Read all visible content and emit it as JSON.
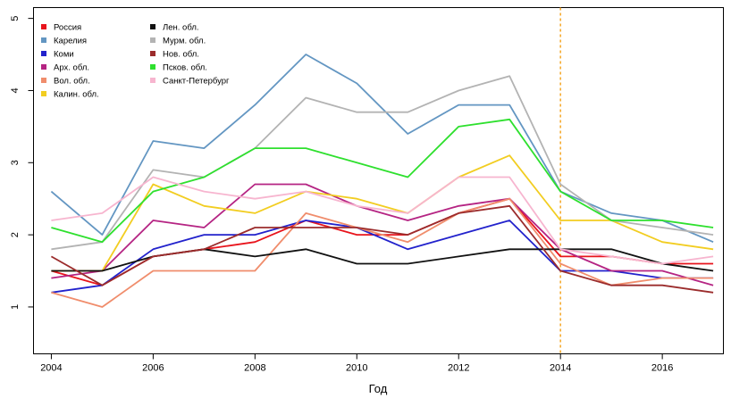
{
  "chart_data": {
    "type": "line",
    "title": "",
    "xlabel": "Год",
    "ylabel": "",
    "xlim": [
      2003.65,
      2017.2
    ],
    "ylim": [
      0.35,
      5.15
    ],
    "x_ticks": [
      2004,
      2006,
      2008,
      2010,
      2012,
      2014,
      2016
    ],
    "y_ticks": [
      1,
      2,
      3,
      4,
      5
    ],
    "x": [
      2004,
      2005,
      2006,
      2007,
      2008,
      2009,
      2010,
      2011,
      2012,
      2013,
      2014,
      2015,
      2016,
      2017
    ],
    "vline": {
      "x": 2014,
      "color": "#f5a623",
      "style": "dashed"
    },
    "legend_position": "top-left",
    "grid": false,
    "series": [
      {
        "name": "Россия",
        "color": "#e8141c",
        "values": [
          1.5,
          1.3,
          1.7,
          1.8,
          1.9,
          2.2,
          2.0,
          2.0,
          2.3,
          2.5,
          1.7,
          1.7,
          1.6,
          1.6
        ]
      },
      {
        "name": "Карелия",
        "color": "#6396c2",
        "values": [
          2.6,
          2.0,
          3.3,
          3.2,
          3.8,
          4.5,
          4.1,
          3.4,
          3.8,
          3.8,
          2.6,
          2.3,
          2.2,
          1.9
        ]
      },
      {
        "name": "Коми",
        "color": "#2222cc",
        "values": [
          1.2,
          1.3,
          1.8,
          2.0,
          2.0,
          2.2,
          2.1,
          1.8,
          2.0,
          2.2,
          1.5,
          1.5,
          1.4,
          1.4
        ]
      },
      {
        "name": "Арх. обл.",
        "color": "#b52483",
        "values": [
          1.4,
          1.5,
          2.2,
          2.1,
          2.7,
          2.7,
          2.4,
          2.2,
          2.4,
          2.5,
          1.8,
          1.5,
          1.5,
          1.3
        ]
      },
      {
        "name": "Вол. обл.",
        "color": "#f08d6c",
        "values": [
          1.2,
          1.0,
          1.5,
          1.5,
          1.5,
          2.3,
          2.1,
          1.9,
          2.3,
          2.5,
          1.6,
          1.3,
          1.4,
          1.4
        ]
      },
      {
        "name": "Калин. обл.",
        "color": "#f2cd21",
        "values": [
          1.5,
          1.5,
          2.7,
          2.4,
          2.3,
          2.6,
          2.5,
          2.3,
          2.8,
          3.1,
          2.2,
          2.2,
          1.9,
          1.8
        ]
      },
      {
        "name": "Лен. обл.",
        "color": "#111111",
        "values": [
          1.5,
          1.5,
          1.7,
          1.8,
          1.7,
          1.8,
          1.6,
          1.6,
          1.7,
          1.8,
          1.8,
          1.8,
          1.6,
          1.5
        ]
      },
      {
        "name": "Мурм. обл.",
        "color": "#b3b3b3",
        "values": [
          1.8,
          1.9,
          2.9,
          2.8,
          3.2,
          3.9,
          3.7,
          3.7,
          4.0,
          4.2,
          2.7,
          2.2,
          2.1,
          2.0
        ]
      },
      {
        "name": "Нов. обл.",
        "color": "#9b2c2c",
        "values": [
          1.7,
          1.3,
          1.7,
          1.8,
          2.1,
          2.1,
          2.1,
          2.0,
          2.3,
          2.4,
          1.5,
          1.3,
          1.3,
          1.2
        ]
      },
      {
        "name": "Псков. обл.",
        "color": "#2ee02e",
        "values": [
          2.1,
          1.9,
          2.6,
          2.8,
          3.2,
          3.2,
          3.0,
          2.8,
          3.5,
          3.6,
          2.6,
          2.2,
          2.2,
          2.1
        ]
      },
      {
        "name": "Санкт-Петербург",
        "color": "#f7b5cf",
        "values": [
          2.2,
          2.3,
          2.8,
          2.6,
          2.5,
          2.6,
          2.4,
          2.3,
          2.8,
          2.8,
          1.8,
          1.7,
          1.6,
          1.7
        ]
      }
    ]
  }
}
